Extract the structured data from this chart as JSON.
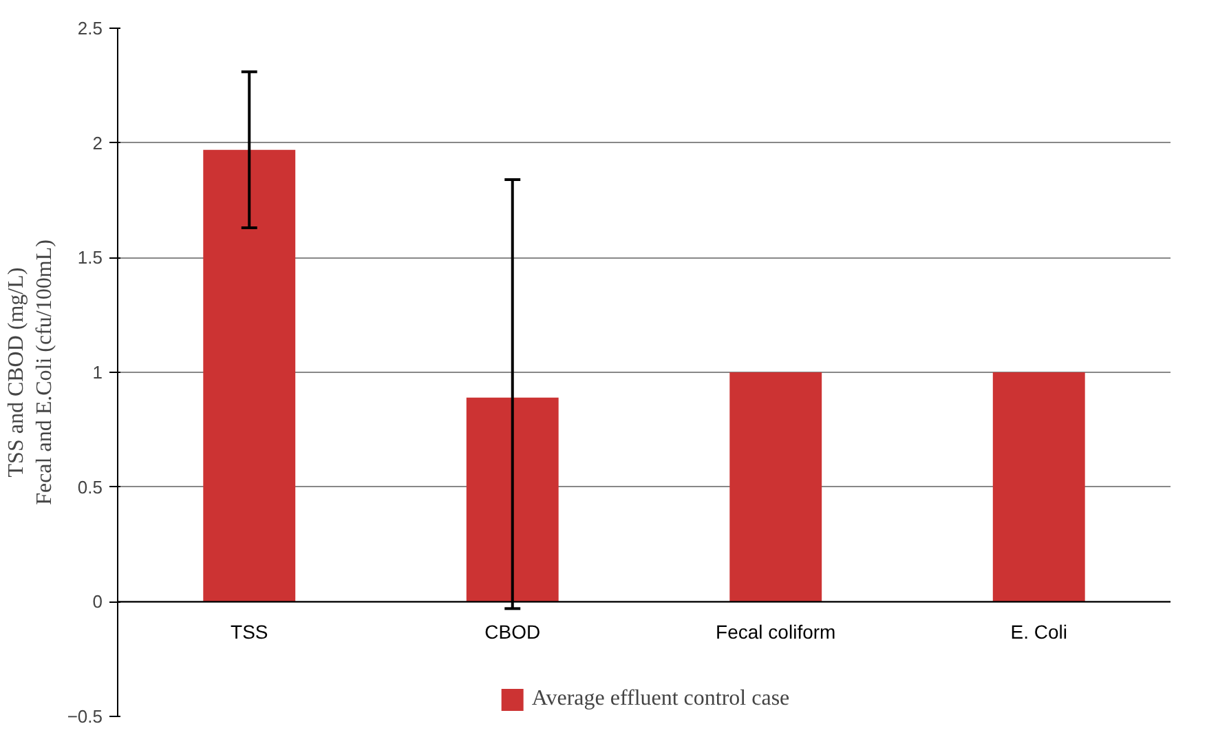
{
  "chart_data": {
    "type": "bar",
    "ylabel": "TSS and CBOD (mg/L)\nFecal and E.Coli (cfu/100mL)",
    "categories": [
      "TSS",
      "CBOD",
      "Fecal coliform",
      "E. Coli"
    ],
    "series": [
      {
        "name": "Average effluent control case",
        "color": "#cc3333",
        "values": [
          1.97,
          0.89,
          1.0,
          1.0
        ],
        "errors": [
          [
            1.63,
            2.31
          ],
          [
            -0.03,
            1.84
          ],
          null,
          null
        ]
      }
    ],
    "ylim": [
      -0.5,
      2.5
    ],
    "yticks": [
      -0.5,
      0,
      0.5,
      1,
      1.5,
      2,
      2.5
    ],
    "grid": "y",
    "legend": "bottom"
  }
}
